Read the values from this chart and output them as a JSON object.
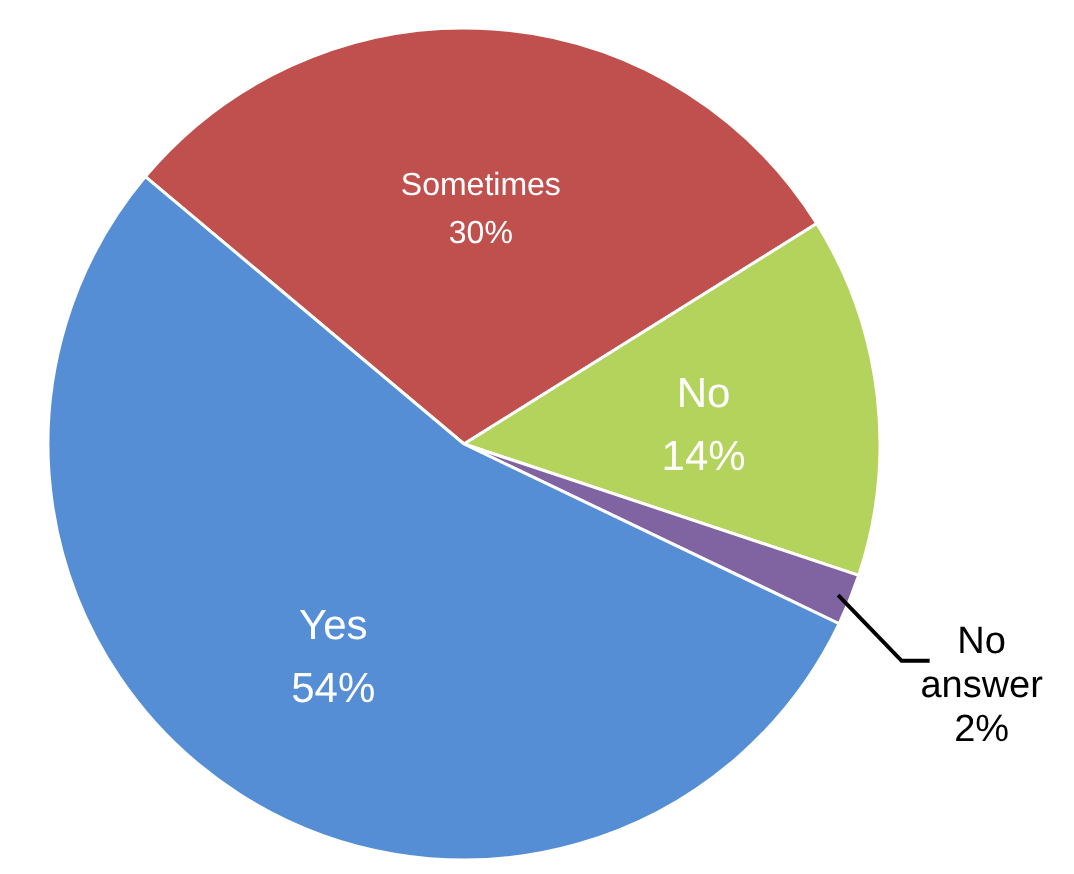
{
  "chart_data": {
    "type": "pie",
    "categories": [
      "Sometimes",
      "No",
      "No answer",
      "Yes"
    ],
    "values": [
      30,
      14,
      2,
      54
    ],
    "colors": [
      "#c0504d",
      "#b3d35c",
      "#8064a2",
      "#558ed5"
    ],
    "value_labels": [
      "30%",
      "14%",
      "2%",
      "54%"
    ]
  }
}
